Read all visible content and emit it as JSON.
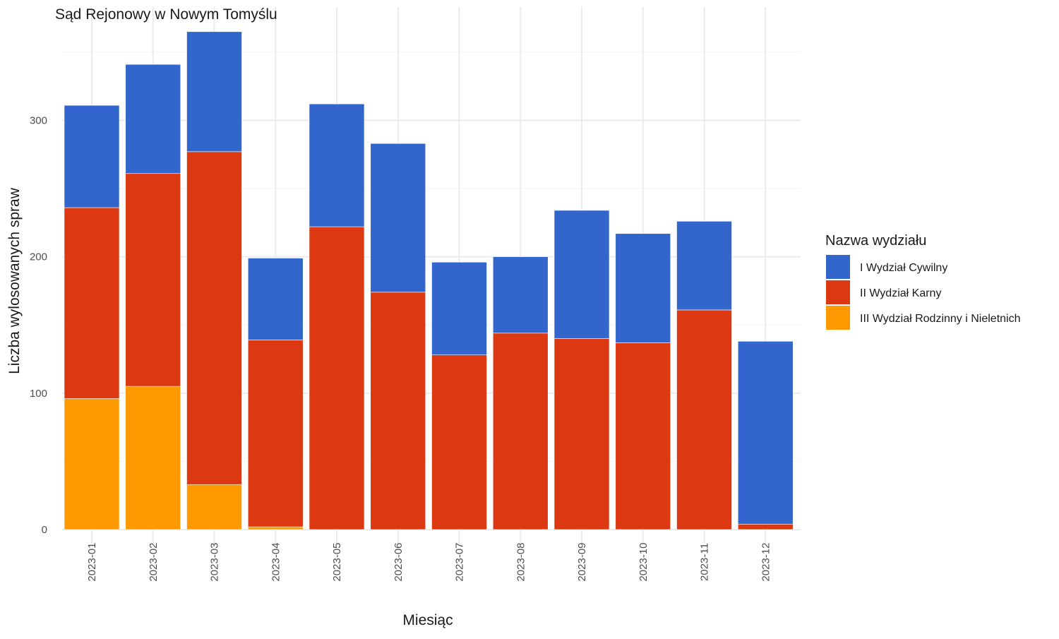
{
  "chart_data": {
    "type": "bar",
    "stacked": true,
    "title": "Sąd Rejonowy w Nowym Tomyślu",
    "xlabel": "Miesiąc",
    "ylabel": "Liczba wylosowanych spraw",
    "ylim": [
      0,
      382
    ],
    "yticks": [
      0,
      100,
      200,
      300
    ],
    "grid": true,
    "legend": {
      "title": "Nazwa wydziału",
      "placement": "right"
    },
    "categories": [
      "2023-01",
      "2023-02",
      "2023-03",
      "2023-04",
      "2023-05",
      "2023-06",
      "2023-07",
      "2023-08",
      "2023-09",
      "2023-10",
      "2023-11",
      "2023-12"
    ],
    "series": [
      {
        "name": "I Wydział Cywilny",
        "color": "#3366cc",
        "values": [
          75,
          80,
          88,
          60,
          90,
          109,
          68,
          56,
          94,
          80,
          65,
          134
        ]
      },
      {
        "name": "II Wydział Karny",
        "color": "#dc3912",
        "values": [
          140,
          156,
          244,
          137,
          222,
          174,
          128,
          144,
          140,
          137,
          161,
          4
        ]
      },
      {
        "name": "III Wydział Rodzinny i Nieletnich",
        "color": "#ff9900",
        "values": [
          96,
          105,
          33,
          2,
          0,
          0,
          0,
          0,
          0,
          0,
          0,
          0
        ]
      }
    ]
  }
}
